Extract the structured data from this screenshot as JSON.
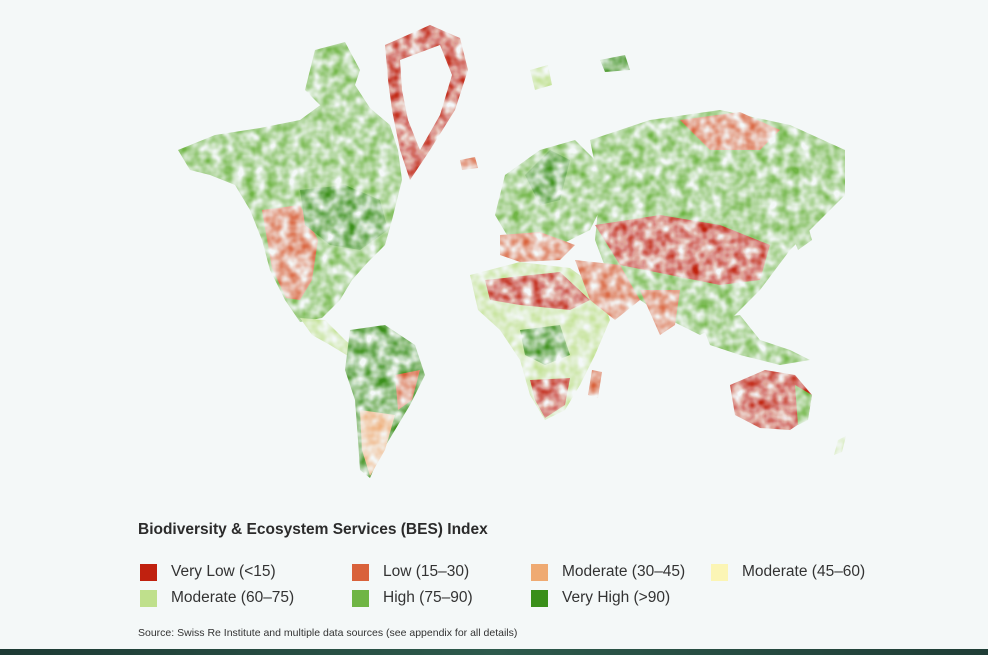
{
  "legend": {
    "title": "Biodiversity & Ecosystem Services (BES) Index",
    "items": [
      {
        "label": "Very Low (<15)",
        "color": "#c0210f"
      },
      {
        "label": "Low (15–30)",
        "color": "#d9623b"
      },
      {
        "label": "Moderate (30–45)",
        "color": "#efaa72"
      },
      {
        "label": "Moderate (45–60)",
        "color": "#fbf5b5"
      },
      {
        "label": "Moderate (60–75)",
        "color": "#bfe08c"
      },
      {
        "label": "High (75–90)",
        "color": "#6fb544"
      },
      {
        "label": "Very High (>90)",
        "color": "#3a8f1a"
      }
    ]
  },
  "source": "Source: Swiss Re Institute and multiple data sources (see appendix for all details)",
  "colors": {
    "background": "#f4f8f8",
    "bottom_strip": "#24483f"
  }
}
